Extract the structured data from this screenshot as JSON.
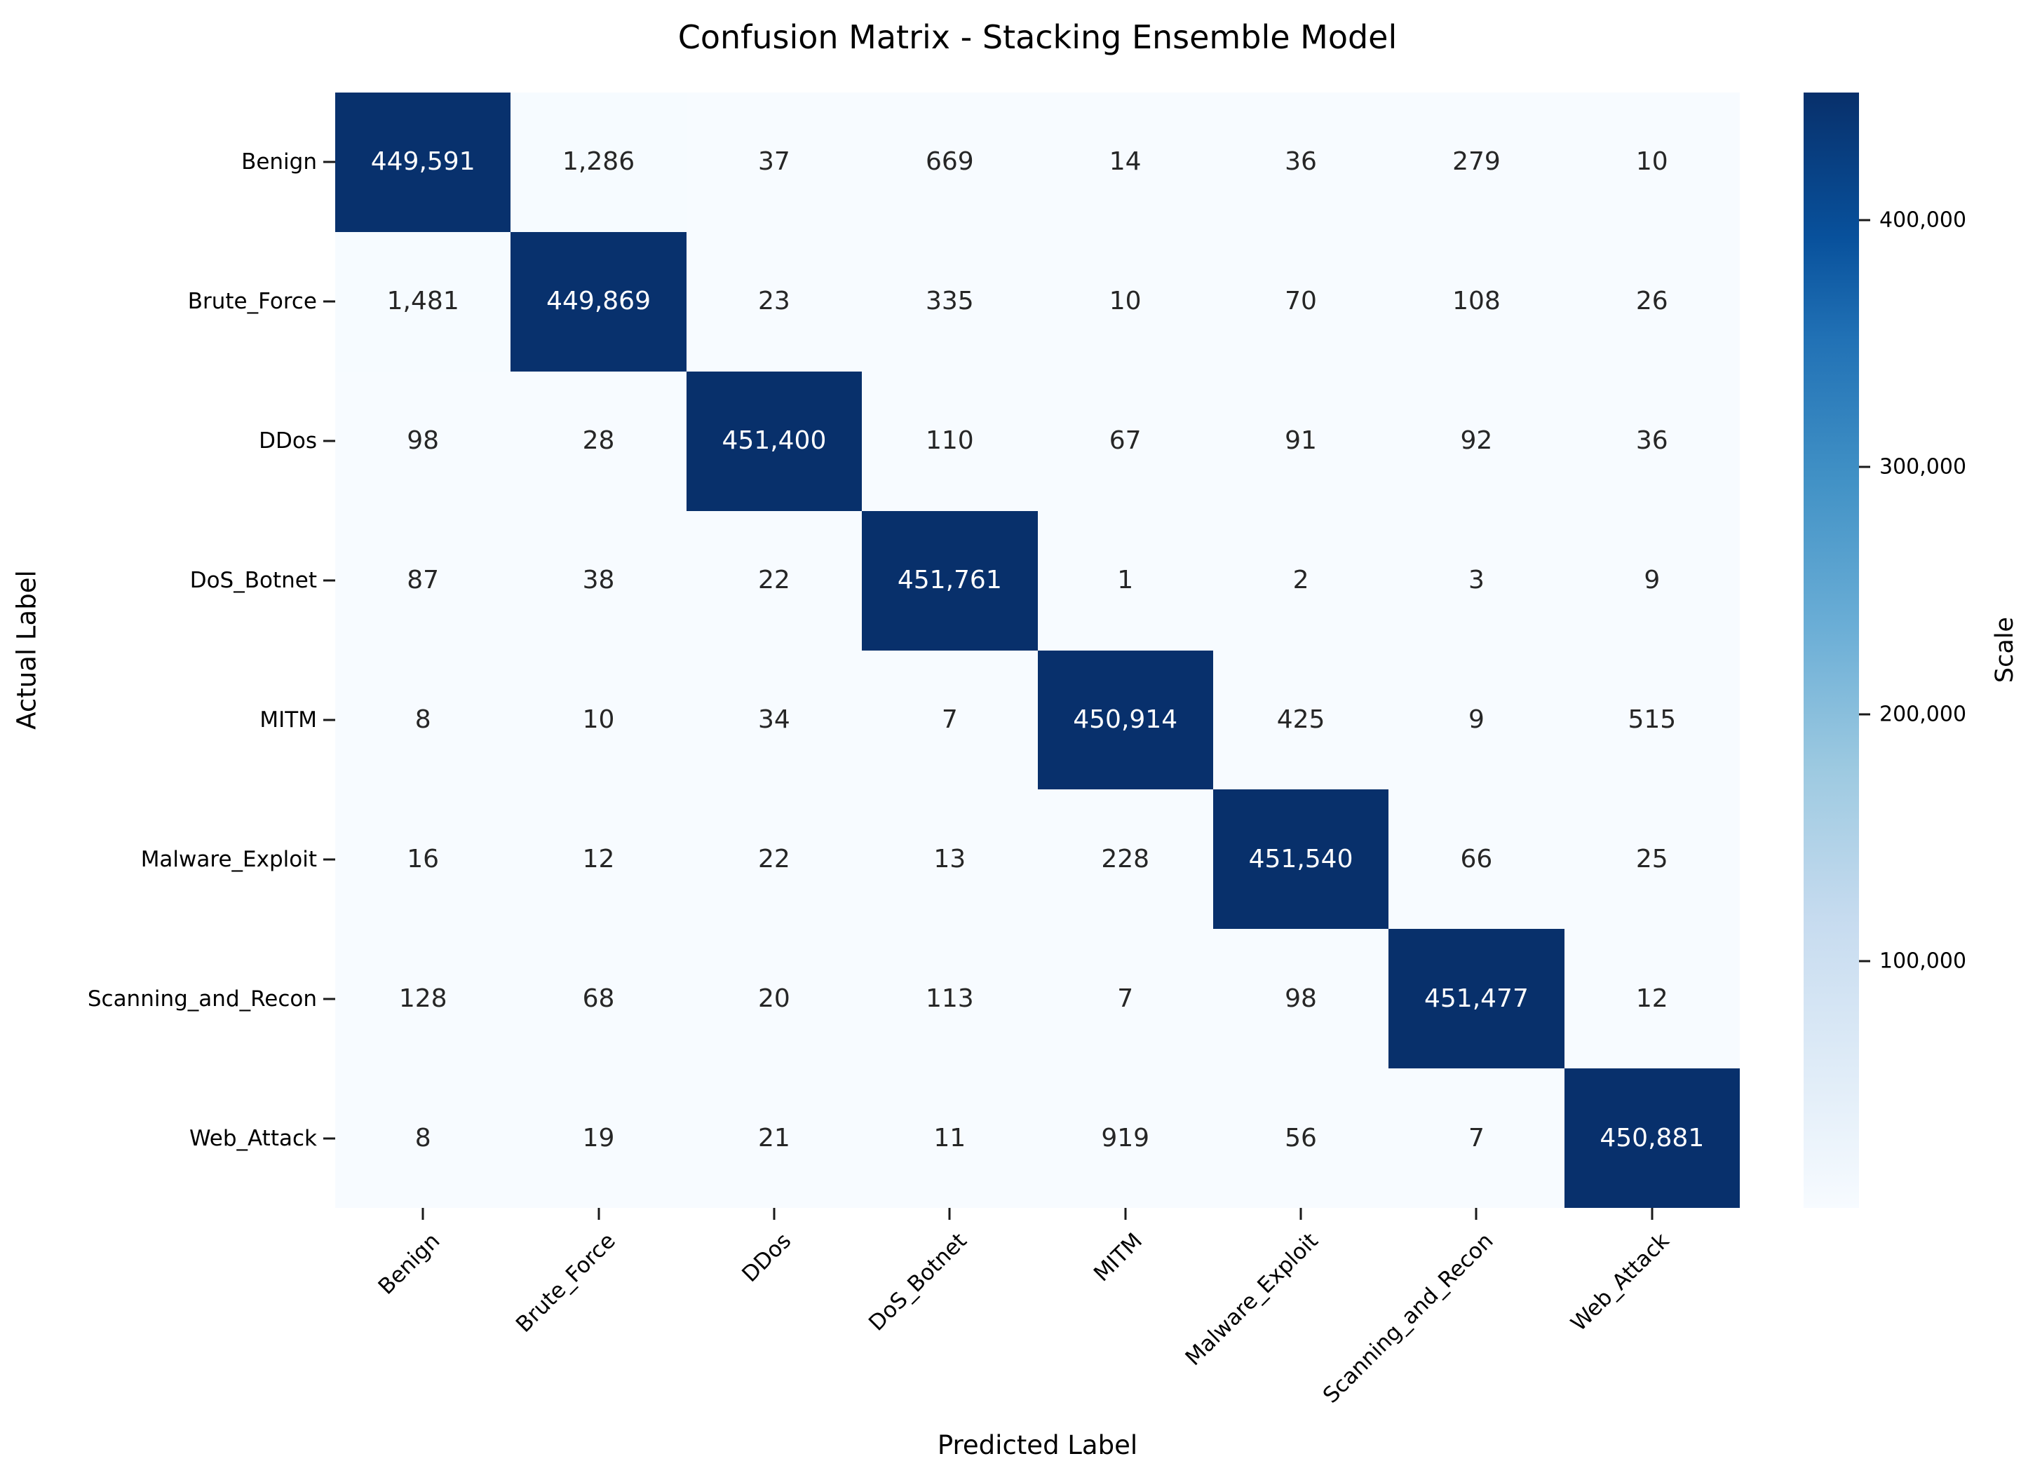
{
  "figure": {
    "title": "Confusion Matrix - Stacking Ensemble Model",
    "xlabel": "Predicted Label",
    "ylabel": "Actual Label"
  },
  "chart_data": {
    "type": "heatmap",
    "title": "Confusion Matrix - Stacking Ensemble Model",
    "xlabel": "Predicted Label",
    "ylabel": "Actual Label",
    "x_categories": [
      "Benign",
      "Brute_Force",
      "DDos",
      "DoS_Botnet",
      "MITM",
      "Malware_Exploit",
      "Scanning_and_Recon",
      "Web_Attack"
    ],
    "y_categories": [
      "Benign",
      "Brute_Force",
      "DDos",
      "DoS_Botnet",
      "MITM",
      "Malware_Exploit",
      "Scanning_and_Recon",
      "Web_Attack"
    ],
    "matrix": [
      [
        449591,
        1286,
        37,
        669,
        14,
        36,
        279,
        10
      ],
      [
        1481,
        449869,
        23,
        335,
        10,
        70,
        108,
        26
      ],
      [
        98,
        28,
        451400,
        110,
        67,
        91,
        92,
        36
      ],
      [
        87,
        38,
        22,
        451761,
        1,
        2,
        3,
        9
      ],
      [
        8,
        10,
        34,
        7,
        450914,
        425,
        9,
        515
      ],
      [
        16,
        12,
        22,
        13,
        228,
        451540,
        66,
        25
      ],
      [
        128,
        68,
        20,
        113,
        7,
        98,
        451477,
        12
      ],
      [
        8,
        19,
        21,
        11,
        919,
        56,
        7,
        450881
      ]
    ],
    "annotation_format": "thousands-comma",
    "colorbar": {
      "label": "Scale",
      "ticks": [
        400000,
        300000,
        200000,
        100000
      ],
      "tick_labels": [
        "400,000",
        "300,000",
        "200,000",
        "100,000"
      ],
      "vmin": 1,
      "vmax": 451761
    },
    "colors": {
      "cmap_name": "Blues",
      "cmap_stops": [
        [
          0.0,
          "#f7fbff"
        ],
        [
          0.13,
          "#deebf7"
        ],
        [
          0.26,
          "#c6dbef"
        ],
        [
          0.39,
          "#9ecae1"
        ],
        [
          0.52,
          "#6baed6"
        ],
        [
          0.65,
          "#4292c6"
        ],
        [
          0.78,
          "#2171b5"
        ],
        [
          0.87,
          "#08519c"
        ],
        [
          1.0,
          "#08306b"
        ]
      ],
      "annot_dark": "#262626",
      "annot_light": "#ffffff",
      "tick_color": "#1a1a1a"
    },
    "grid": false,
    "legend": false,
    "layout_hints": {
      "x_tick_rotation_deg": 45,
      "colorbar_position": "right"
    }
  }
}
